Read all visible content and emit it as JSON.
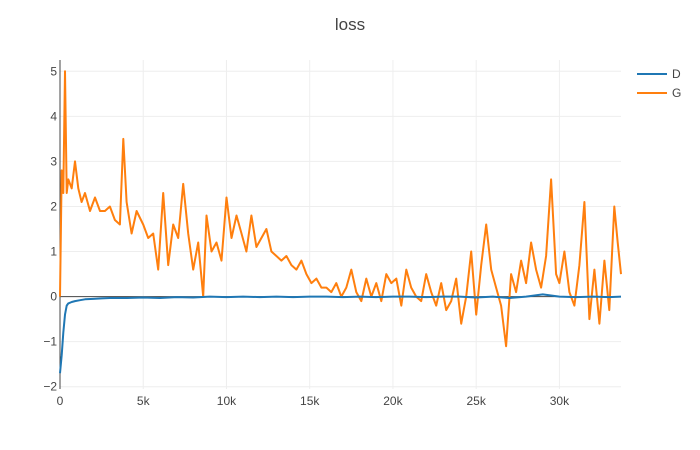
{
  "chart_data": {
    "type": "line",
    "title": "loss",
    "xlabel": "",
    "ylabel": "",
    "xlim": [
      0,
      33700
    ],
    "ylim": [
      -2.05,
      5.25
    ],
    "x_ticks": [
      0,
      5000,
      10000,
      15000,
      20000,
      25000,
      30000
    ],
    "x_tick_labels": [
      "0",
      "5k",
      "10k",
      "15k",
      "20k",
      "25k",
      "30k"
    ],
    "y_ticks": [
      -2,
      -1,
      0,
      1,
      2,
      3,
      4,
      5
    ],
    "y_tick_labels": [
      "−2",
      "−1",
      "0",
      "1",
      "2",
      "3",
      "4",
      "5"
    ],
    "grid": true,
    "legend_position": "top-right",
    "series": [
      {
        "name": "D",
        "color": "#1f77b4",
        "x": [
          0,
          100,
          200,
          300,
          400,
          500,
          700,
          900,
          1200,
          1500,
          2000,
          2500,
          3000,
          4000,
          5000,
          6000,
          7000,
          8000,
          9000,
          10000,
          11000,
          12000,
          13000,
          14000,
          15000,
          16000,
          17000,
          18000,
          19000,
          20000,
          21000,
          22000,
          23000,
          24000,
          25000,
          26000,
          27000,
          28000,
          29000,
          30000,
          31000,
          32000,
          33000,
          33700
        ],
        "y": [
          -1.7,
          -1.3,
          -0.8,
          -0.4,
          -0.2,
          -0.15,
          -0.12,
          -0.1,
          -0.08,
          -0.06,
          -0.05,
          -0.04,
          -0.03,
          -0.03,
          -0.02,
          -0.03,
          -0.01,
          -0.02,
          0.0,
          -0.01,
          0.0,
          -0.01,
          0.0,
          -0.01,
          0.0,
          0.0,
          -0.01,
          0.0,
          -0.01,
          0.0,
          0.0,
          -0.01,
          0.0,
          0.0,
          -0.02,
          0.0,
          -0.03,
          0.0,
          0.05,
          0.0,
          -0.01,
          0.0,
          -0.01,
          0.0
        ]
      },
      {
        "name": "G",
        "color": "#ff7f0e",
        "x": [
          0,
          100,
          200,
          300,
          400,
          500,
          700,
          900,
          1100,
          1300,
          1500,
          1800,
          2100,
          2400,
          2700,
          3000,
          3300,
          3600,
          3800,
          4000,
          4300,
          4600,
          5000,
          5300,
          5600,
          5900,
          6200,
          6500,
          6800,
          7100,
          7400,
          7700,
          8000,
          8300,
          8600,
          8800,
          9100,
          9400,
          9700,
          10000,
          10300,
          10600,
          10900,
          11200,
          11500,
          11800,
          12100,
          12400,
          12700,
          13000,
          13300,
          13600,
          13900,
          14200,
          14500,
          14800,
          15100,
          15400,
          15700,
          16000,
          16300,
          16600,
          16900,
          17200,
          17500,
          17800,
          18100,
          18400,
          18700,
          19000,
          19300,
          19600,
          19900,
          20200,
          20500,
          20800,
          21100,
          21400,
          21700,
          22000,
          22300,
          22600,
          22900,
          23200,
          23500,
          23800,
          24100,
          24400,
          24700,
          25000,
          25300,
          25600,
          25900,
          26200,
          26500,
          26800,
          27100,
          27400,
          27700,
          28000,
          28300,
          28600,
          28900,
          29200,
          29500,
          29800,
          30000,
          30300,
          30600,
          30900,
          31200,
          31500,
          31800,
          32100,
          32400,
          32700,
          33000,
          33300,
          33500,
          33700
        ],
        "y": [
          0.0,
          2.8,
          2.3,
          5.0,
          2.3,
          2.6,
          2.4,
          3.0,
          2.4,
          2.1,
          2.3,
          1.9,
          2.2,
          1.9,
          1.9,
          2.0,
          1.7,
          1.6,
          3.5,
          2.1,
          1.4,
          1.9,
          1.6,
          1.3,
          1.4,
          0.6,
          2.3,
          0.7,
          1.6,
          1.3,
          2.5,
          1.4,
          0.6,
          1.2,
          0.0,
          1.8,
          1.0,
          1.2,
          0.8,
          2.2,
          1.3,
          1.8,
          1.4,
          1.0,
          1.8,
          1.1,
          1.3,
          1.5,
          1.0,
          0.9,
          0.8,
          0.9,
          0.7,
          0.6,
          0.8,
          0.5,
          0.3,
          0.4,
          0.2,
          0.2,
          0.1,
          0.3,
          0.0,
          0.2,
          0.6,
          0.1,
          -0.1,
          0.4,
          0.0,
          0.3,
          -0.1,
          0.5,
          0.3,
          0.4,
          -0.2,
          0.6,
          0.2,
          0.0,
          -0.1,
          0.5,
          0.1,
          -0.2,
          0.3,
          -0.3,
          -0.1,
          0.4,
          -0.6,
          0.0,
          1.0,
          -0.4,
          0.7,
          1.6,
          0.6,
          0.2,
          -0.2,
          -1.1,
          0.5,
          0.1,
          0.8,
          0.3,
          1.2,
          0.6,
          0.2,
          0.9,
          2.6,
          0.5,
          0.3,
          1.0,
          0.1,
          -0.2,
          0.7,
          2.1,
          -0.5,
          0.6,
          -0.6,
          0.8,
          -0.3,
          2.0,
          1.2,
          0.5
        ]
      }
    ]
  }
}
